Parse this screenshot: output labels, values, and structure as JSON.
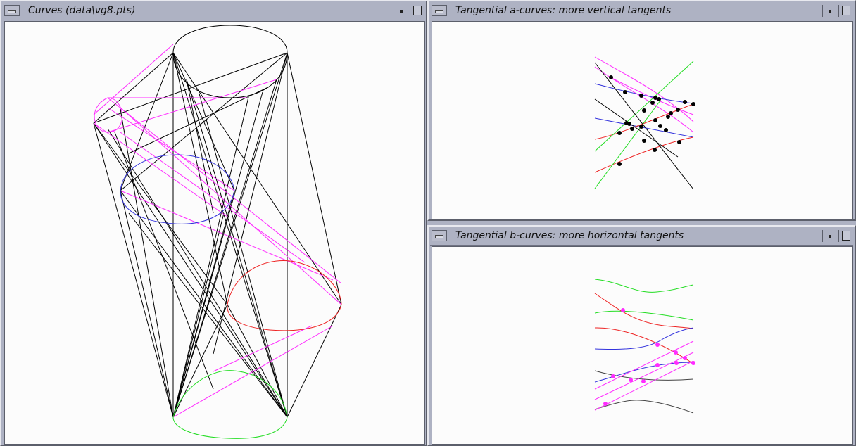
{
  "windows": {
    "curves": {
      "title": "Curves (data\\vg8.pts)"
    },
    "a_curves": {
      "title": "Tangential a-curves: more vertical tangents"
    },
    "b_curves": {
      "title": "Tangential b-curves: more horizontal tangents"
    }
  },
  "icons": [
    "window-menu-icon",
    "minimize-icon",
    "maximize-icon"
  ],
  "colors": {
    "frame": "#aeb2c3",
    "canvas": "#fcfcfc",
    "magenta": "#ff2bff",
    "blue": "#3333dd",
    "red": "#ee2222",
    "green": "#22dd22",
    "black": "#000000"
  }
}
